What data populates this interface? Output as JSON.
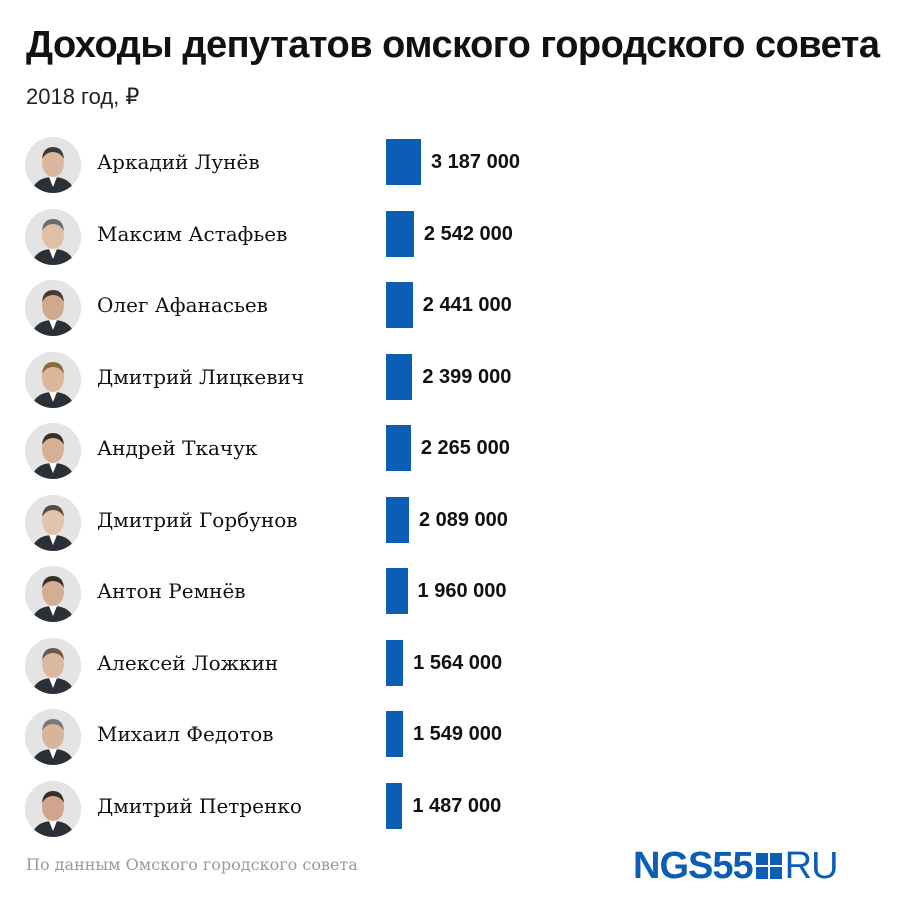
{
  "header": {
    "title": "Доходы депутатов омского городского совета",
    "subtitle": "2018 год, ₽"
  },
  "chart_data": {
    "type": "bar",
    "orientation": "horizontal",
    "categories": [
      "Аркадий Лунёв",
      "Максим Астафьев",
      "Олег Афанасьев",
      "Дмитрий Лицкевич",
      "Андрей Ткачук",
      "Дмитрий Горбунов",
      "Антон Ремнёв",
      "Алексей Ложкин",
      "Михаил Федотов",
      "Дмитрий Петренко"
    ],
    "values": [
      3187000,
      2542000,
      2441000,
      2399000,
      2265000,
      2089000,
      1960000,
      1564000,
      1549000,
      1487000
    ],
    "value_labels": [
      "3 187 000",
      "2 542 000",
      "2 441 000",
      "2 399 000",
      "2 265 000",
      "2 089 000",
      "1 960 000",
      "1 564 000",
      "1 549 000",
      "1 487 000"
    ],
    "bar_color": "#0c5db4",
    "grid": false,
    "legend": "none"
  },
  "footer": {
    "source": "По данным Омского городского совета",
    "logo_main": "NGS55",
    "logo_suffix": "RU"
  }
}
